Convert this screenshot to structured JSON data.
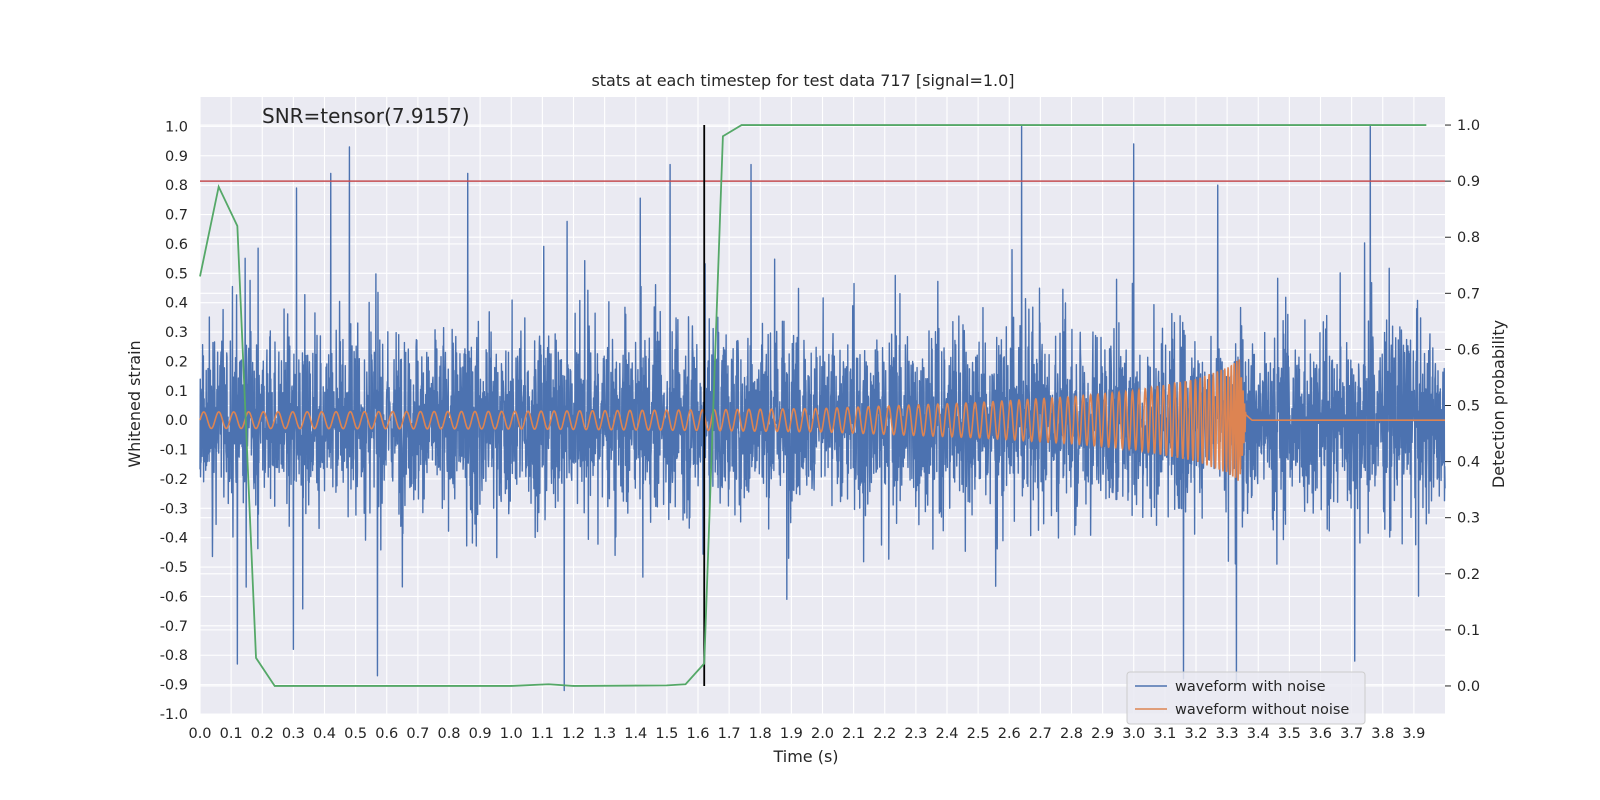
{
  "chart_data": {
    "type": "line",
    "title": "stats at each timestep for test data 717 [signal=1.0]",
    "xlabel": "Time (s)",
    "ylabel": "Whitened strain",
    "y2label": "Detection probability",
    "annotation": "SNR=tensor(7.9157)",
    "xlim": [
      0.0,
      4.0
    ],
    "ylim": [
      -1.0,
      1.1
    ],
    "y2lim": [
      -0.05,
      1.05
    ],
    "x_ticks": [
      "0.0",
      "0.1",
      "0.2",
      "0.3",
      "0.4",
      "0.5",
      "0.6",
      "0.7",
      "0.8",
      "0.9",
      "1.0",
      "1.1",
      "1.2",
      "1.3",
      "1.4",
      "1.5",
      "1.6",
      "1.7",
      "1.8",
      "1.9",
      "2.0",
      "2.1",
      "2.2",
      "2.3",
      "2.4",
      "2.5",
      "2.6",
      "2.7",
      "2.8",
      "2.9",
      "3.0",
      "3.1",
      "3.2",
      "3.3",
      "3.4",
      "3.5",
      "3.6",
      "3.7",
      "3.8",
      "3.9"
    ],
    "y_ticks": [
      "1.0",
      "0.9",
      "0.8",
      "0.7",
      "0.6",
      "0.5",
      "0.4",
      "0.3",
      "0.2",
      "0.1",
      "0.0",
      "-0.1",
      "-0.2",
      "-0.3",
      "-0.4",
      "-0.5",
      "-0.6",
      "-0.7",
      "-0.8",
      "-0.9",
      "-1.0"
    ],
    "y2_ticks": [
      "1.0",
      "0.9",
      "0.8",
      "0.7",
      "0.6",
      "0.5",
      "0.4",
      "0.3",
      "0.2",
      "0.1",
      "0.0"
    ],
    "threshold": {
      "value": 0.9,
      "axis": "right",
      "color": "#c44e52"
    },
    "vertical_marker": {
      "x": 1.62,
      "color": "#000000"
    },
    "series": [
      {
        "name": "waveform with noise",
        "color": "#4c72b0",
        "axis": "left",
        "description": "noisy whitened strain, amplitude roughly within -0.9 to 1.0",
        "peaks": [
          {
            "x": 0.48,
            "y": 0.93
          },
          {
            "x": 1.51,
            "y": 0.87
          },
          {
            "x": 2.64,
            "y": 1.0
          },
          {
            "x": 3.76,
            "y": 1.0
          },
          {
            "x": 3.0,
            "y": 0.94
          },
          {
            "x": 1.17,
            "y": -0.92
          },
          {
            "x": 3.33,
            "y": -0.9
          },
          {
            "x": 0.12,
            "y": -0.83
          },
          {
            "x": 3.16,
            "y": -0.88
          },
          {
            "x": 0.57,
            "y": -0.87
          },
          {
            "x": 0.86,
            "y": 0.84
          },
          {
            "x": 0.42,
            "y": 0.84
          },
          {
            "x": 1.77,
            "y": 0.87
          },
          {
            "x": 0.31,
            "y": 0.79
          },
          {
            "x": 3.27,
            "y": 0.8
          },
          {
            "x": 0.3,
            "y": -0.78
          },
          {
            "x": 3.71,
            "y": -0.82
          }
        ]
      },
      {
        "name": "waveform without noise",
        "color": "#dd8452",
        "axis": "left",
        "description": "chirp signal, amplitude ~0.03 at start growing to ~0.21 near merger at 3.34 s, then ringdown to 0",
        "merger_time": 3.34,
        "envelope": [
          {
            "x": 0.0,
            "amp": 0.028
          },
          {
            "x": 1.0,
            "amp": 0.03
          },
          {
            "x": 1.6,
            "amp": 0.035
          },
          {
            "x": 2.0,
            "amp": 0.04
          },
          {
            "x": 2.5,
            "amp": 0.06
          },
          {
            "x": 2.8,
            "amp": 0.08
          },
          {
            "x": 3.0,
            "amp": 0.1
          },
          {
            "x": 3.2,
            "amp": 0.14
          },
          {
            "x": 3.3,
            "amp": 0.18
          },
          {
            "x": 3.34,
            "amp": 0.21
          },
          {
            "x": 3.36,
            "amp": 0.02
          },
          {
            "x": 3.38,
            "amp": 0.0
          },
          {
            "x": 4.0,
            "amp": 0.0
          }
        ]
      },
      {
        "name": "detection probability",
        "color": "#55a868",
        "axis": "right",
        "x": [
          0.0,
          0.06,
          0.12,
          0.18,
          0.24,
          0.5,
          1.0,
          1.12,
          1.2,
          1.5,
          1.56,
          1.62,
          1.68,
          1.74,
          3.94
        ],
        "y": [
          0.73,
          0.89,
          0.82,
          0.05,
          0.0,
          0.0,
          0.0,
          0.003,
          0.0,
          0.001,
          0.003,
          0.04,
          0.98,
          1.0,
          1.0
        ]
      }
    ],
    "legend": {
      "position": "lower-right",
      "entries": [
        {
          "label": "waveform with noise",
          "color": "#4c72b0"
        },
        {
          "label": "waveform without noise",
          "color": "#dd8452"
        }
      ]
    }
  }
}
